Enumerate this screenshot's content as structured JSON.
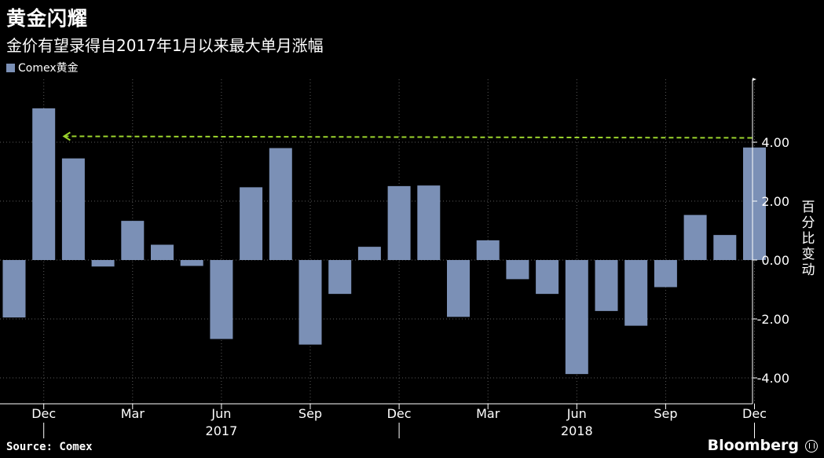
{
  "header": {
    "title": "黄金闪耀",
    "subtitle": "金价有望录得自2017年1月以来最大单月涨幅"
  },
  "legend": {
    "label": "Comex黄金"
  },
  "footer": {
    "source": "Source: Comex",
    "brand": "Bloomberg"
  },
  "colors": {
    "bar": "#7b90b6",
    "background": "#000000",
    "axis": "#ffffff",
    "reference_line": "#9bd32d"
  },
  "chart_data": {
    "type": "bar",
    "ylabel": "百分比变动",
    "ylim": [
      -4.4,
      6.0
    ],
    "yticks": [
      4.0,
      2.0,
      0.0,
      -2.0,
      -4.0
    ],
    "ytick_labels": [
      "4.00",
      "2.00",
      "0.00",
      "-2.00",
      "-4.00"
    ],
    "grid": true,
    "legend_position": "top-left",
    "series": [
      {
        "name": "Comex黄金",
        "color": "#7b90b6",
        "x": [
          "2016-11",
          "2016-12",
          "2017-01",
          "2017-02",
          "2017-03",
          "2017-04",
          "2017-05",
          "2017-06",
          "2017-07",
          "2017-08",
          "2017-09",
          "2017-10",
          "2017-11",
          "2017-12",
          "2018-01",
          "2018-02",
          "2018-03",
          "2018-04",
          "2018-05",
          "2018-06",
          "2018-07",
          "2018-08",
          "2018-09",
          "2018-10",
          "2018-11",
          "2018-12"
        ],
        "values": [
          -1.95,
          5.15,
          3.45,
          -0.22,
          1.33,
          0.52,
          -0.2,
          -2.68,
          2.47,
          3.8,
          -2.87,
          -1.15,
          0.45,
          2.51,
          2.53,
          -1.93,
          0.67,
          -0.65,
          -1.15,
          -3.87,
          -1.73,
          -2.23,
          -0.92,
          1.53,
          0.85,
          3.82
        ]
      }
    ],
    "x_month_labels": [
      {
        "x": "2016-12",
        "label": "Dec"
      },
      {
        "x": "2017-03",
        "label": "Mar"
      },
      {
        "x": "2017-06",
        "label": "Jun"
      },
      {
        "x": "2017-09",
        "label": "Sep"
      },
      {
        "x": "2017-12",
        "label": "Dec"
      },
      {
        "x": "2018-03",
        "label": "Mar"
      },
      {
        "x": "2018-06",
        "label": "Jun"
      },
      {
        "x": "2018-09",
        "label": "Sep"
      },
      {
        "x": "2018-12",
        "label": "Dec"
      }
    ],
    "x_year_labels": [
      {
        "x": "2017-06",
        "label": "2017"
      },
      {
        "x": "2018-06",
        "label": "2018"
      }
    ],
    "reference_line": {
      "y": 4.2,
      "from": "2017-01",
      "to": "2018-12",
      "style": "dashed"
    }
  }
}
